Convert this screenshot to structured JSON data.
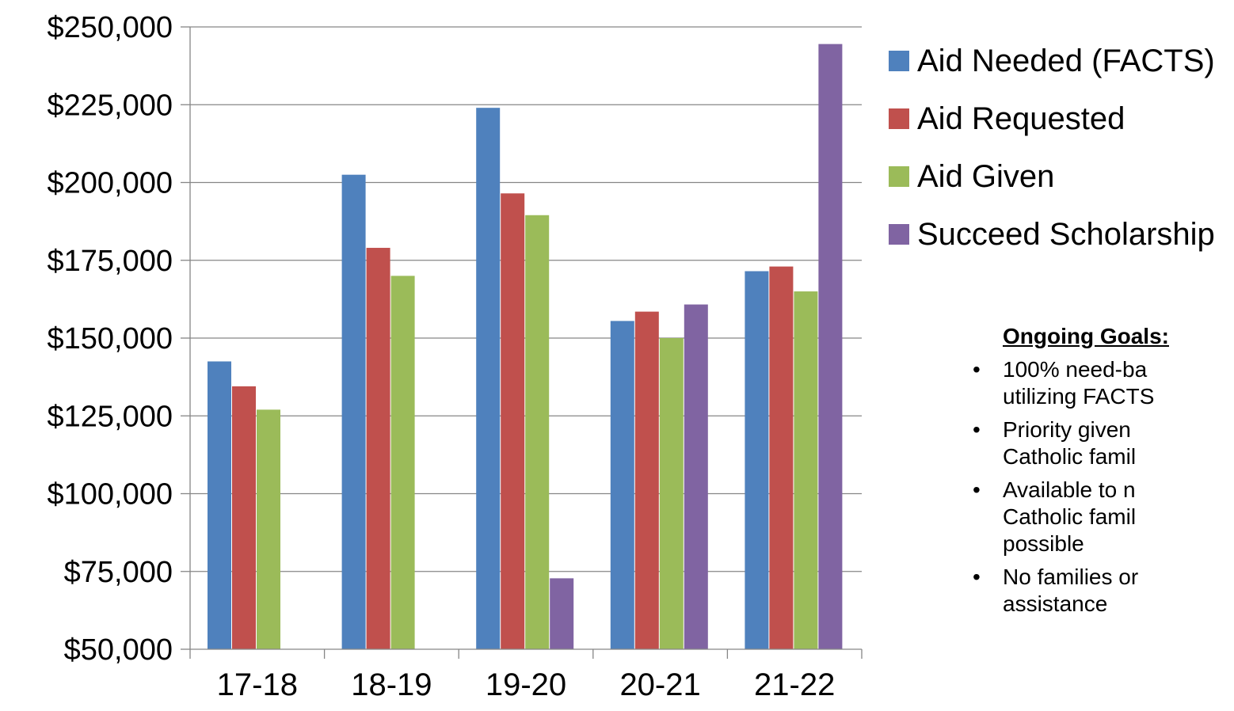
{
  "chart_data": {
    "type": "bar",
    "categories": [
      "17-18",
      "18-19",
      "19-20",
      "20-21",
      "21-22"
    ],
    "series": [
      {
        "name": "Aid Needed (FACTS)",
        "color": "#4F81BD",
        "values": [
          142500,
          202500,
          224000,
          155500,
          171500
        ]
      },
      {
        "name": "Aid Requested",
        "color": "#C0504D",
        "values": [
          134500,
          179000,
          196500,
          158500,
          173000
        ]
      },
      {
        "name": "Aid Given",
        "color": "#9BBB59",
        "values": [
          127000,
          170000,
          189500,
          150000,
          165000
        ]
      },
      {
        "name": "Succeed Scholarship",
        "color": "#8064A2",
        "values": [
          null,
          null,
          72800,
          160800,
          244500
        ]
      }
    ],
    "ylim": [
      50000,
      250000
    ],
    "yticks": [
      "$250,000",
      "$225,000",
      "$200,000",
      "$175,000",
      "$150,000",
      "$125,000",
      "$100,000",
      "$75,000",
      "$50,000"
    ],
    "ytick_values": [
      250000,
      225000,
      200000,
      175000,
      150000,
      125000,
      100000,
      75000,
      50000
    ],
    "grid": true,
    "legend_position": "right",
    "xlabel": "",
    "ylabel": "",
    "title": ""
  },
  "goals": {
    "title": "Ongoing Goals:",
    "items": [
      "100% need-ba\nutilizing FACTS",
      "Priority given\nCatholic famil",
      "Available to n\nCatholic famil\npossible",
      "No families or\nassistance"
    ]
  },
  "colors": {
    "grid": "#868686",
    "axis": "#868686"
  }
}
